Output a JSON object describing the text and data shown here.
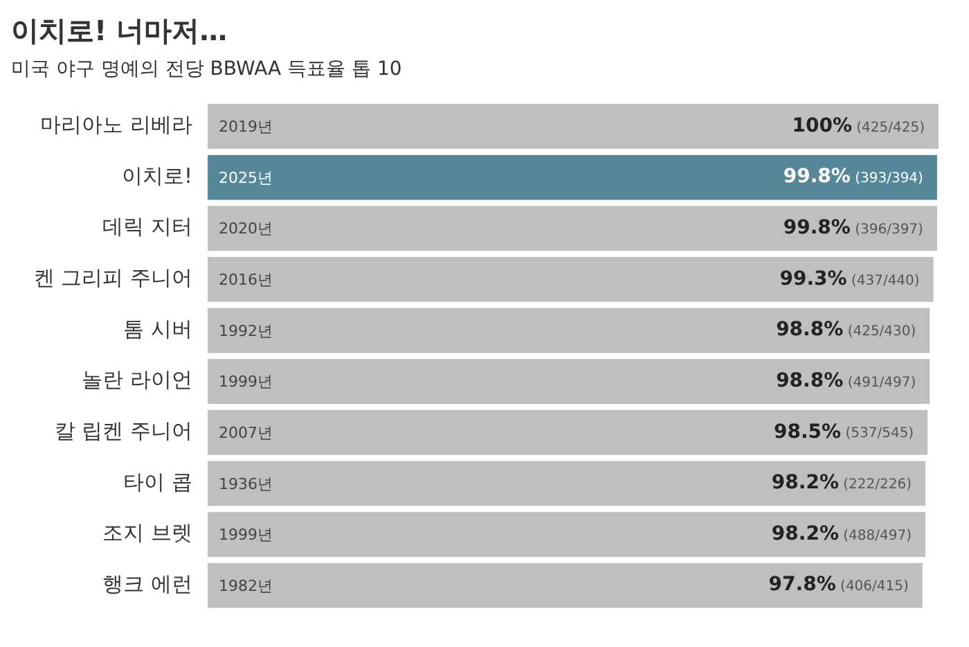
{
  "chart_data": {
    "type": "bar",
    "orientation": "horizontal",
    "title": "이치로! 너마저…",
    "subtitle": "미국 야구 명예의 전당 BBWAA 득표율 톱 10",
    "categories": [
      "마리아노 리베라",
      "이치로!",
      "데릭 지터",
      "켄 그리피 주니어",
      "톰 시버",
      "놀란 라이언",
      "칼 립켄 주니어",
      "타이 콥",
      "조지 브렛",
      "행크 에런"
    ],
    "values": [
      100,
      99.8,
      99.8,
      99.3,
      98.8,
      98.8,
      98.5,
      98.2,
      98.2,
      97.8
    ],
    "colors": [
      "#bfbfbf",
      "#56889a",
      "#bfbfbf",
      "#bfbfbf",
      "#bfbfbf",
      "#bfbfbf",
      "#bfbfbf",
      "#bfbfbf",
      "#bfbfbf",
      "#bfbfbf"
    ],
    "value_labels": [
      "100% (425/425)",
      "99.8% (393/394)",
      "99.8% (396/397)",
      "99.3% (437/440)",
      "98.8% (425/430)",
      "98.8% (491/497)",
      "98.5% (537/545)",
      "98.2% (222/226)",
      "98.2% (488/497)",
      "97.8% (406/415)"
    ],
    "annotations": [
      {
        "text": "2019년",
        "y": "마리아노 리베라"
      },
      {
        "text": "2025년",
        "y": "이치로!"
      },
      {
        "text": "2020년",
        "y": "데릭 지터"
      },
      {
        "text": "2016년",
        "y": "켄 그리피 주니어"
      },
      {
        "text": "1992년",
        "y": "톰 시버"
      },
      {
        "text": "1999년",
        "y": "놀란 라이언"
      },
      {
        "text": "2007년",
        "y": "칼 립켄 주니어"
      },
      {
        "text": "1936년",
        "y": "타이 콥"
      },
      {
        "text": "1999년",
        "y": "조지 브렛"
      },
      {
        "text": "1982년",
        "y": "행크 에런"
      }
    ],
    "tick_labels": "y",
    "legend": false
  }
}
